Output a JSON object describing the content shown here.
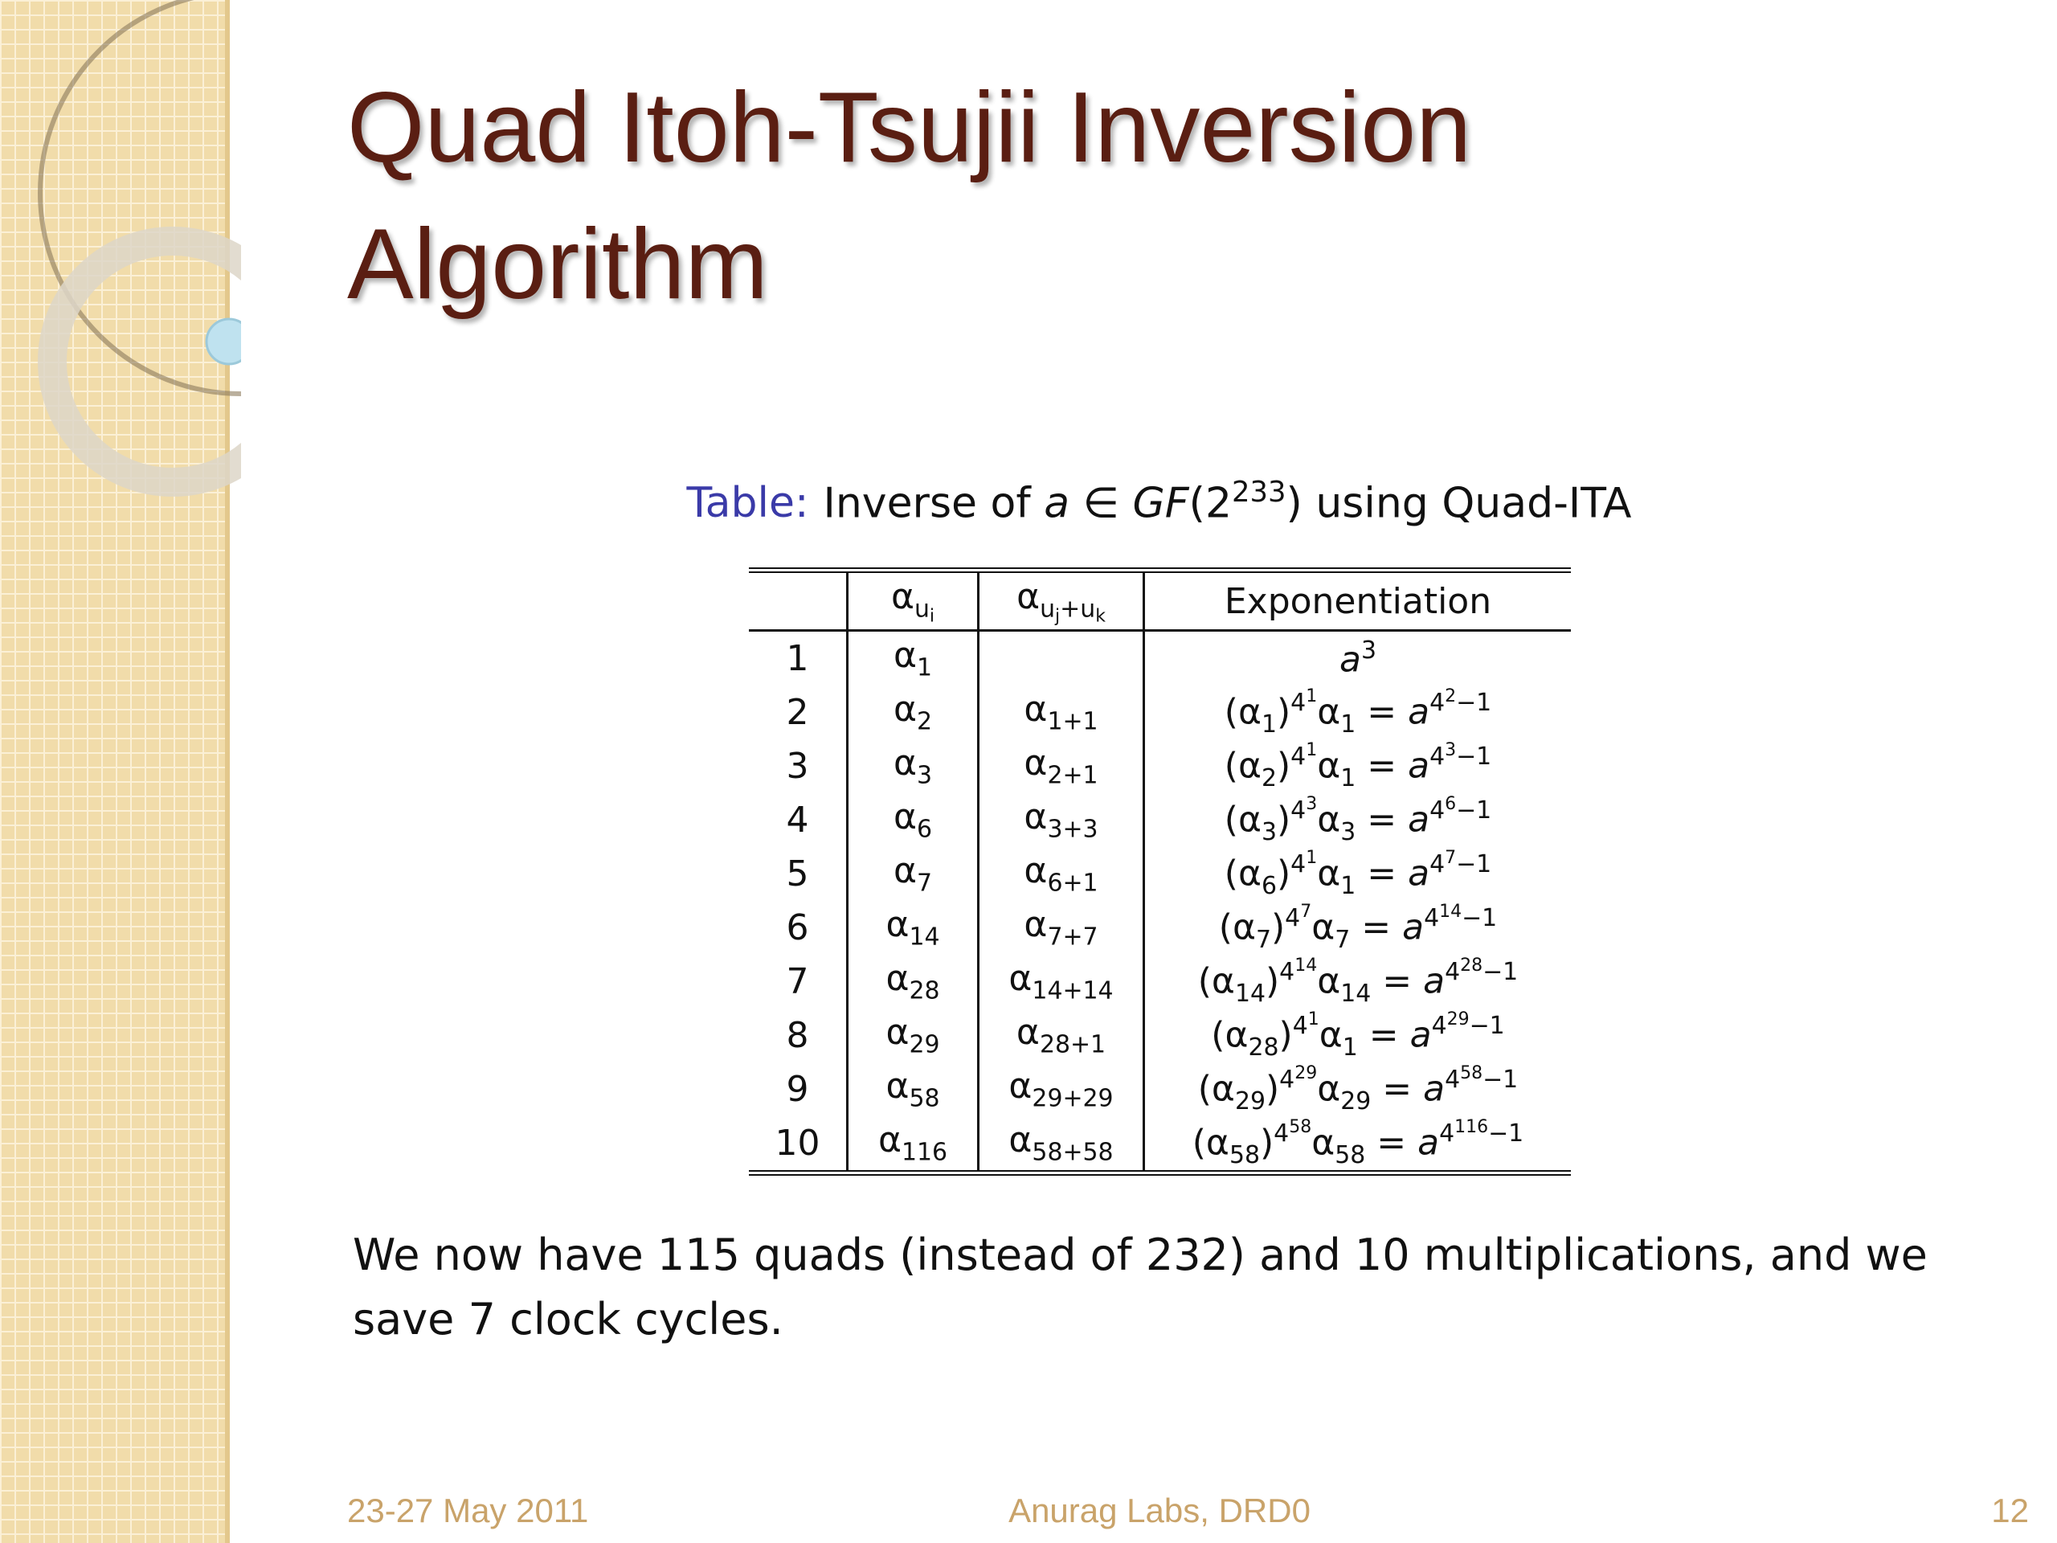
{
  "slide": {
    "title_lines": [
      "Quad Itoh-Tsujii Inversion",
      "Algorithm"
    ],
    "caption": {
      "label": "Table:",
      "text": [
        {
          "t": "Inverse of "
        },
        {
          "i": "a"
        },
        {
          "t": " ∈ "
        },
        {
          "i": "GF"
        },
        {
          "t": "(2"
        },
        {
          "sup": "233"
        },
        {
          "t": ") using Quad-ITA"
        }
      ]
    },
    "table": {
      "header": [
        [
          {
            "t": "α"
          },
          {
            "sub": "u"
          },
          {
            "subsub": "i"
          }
        ],
        [
          {
            "t": "α"
          },
          {
            "sub": "u"
          },
          {
            "subsub": "j"
          },
          {
            "sub": "+u"
          },
          {
            "subsub": "k"
          }
        ],
        [
          {
            "t": "Exponentiation"
          }
        ]
      ],
      "rows": [
        [
          "1",
          [
            {
              "t": "α"
            },
            {
              "sub": "1"
            }
          ],
          null,
          [
            {
              "i": "a"
            },
            {
              "sup": "3"
            }
          ]
        ],
        [
          "2",
          [
            {
              "t": "α"
            },
            {
              "sub": "2"
            }
          ],
          [
            {
              "t": "α"
            },
            {
              "sub": "1+1"
            }
          ],
          [
            {
              "t": "(α"
            },
            {
              "sub": "1"
            },
            {
              "t": ")"
            },
            {
              "sup": "4"
            },
            {
              "supsup": "1"
            },
            {
              "t": "α"
            },
            {
              "sub": "1"
            },
            {
              "t": " = "
            },
            {
              "i": "a"
            },
            {
              "sup": "4"
            },
            {
              "supsup": "2"
            },
            {
              "sup": "−1"
            }
          ]
        ],
        [
          "3",
          [
            {
              "t": "α"
            },
            {
              "sub": "3"
            }
          ],
          [
            {
              "t": "α"
            },
            {
              "sub": "2+1"
            }
          ],
          [
            {
              "t": "(α"
            },
            {
              "sub": "2"
            },
            {
              "t": ")"
            },
            {
              "sup": "4"
            },
            {
              "supsup": "1"
            },
            {
              "t": "α"
            },
            {
              "sub": "1"
            },
            {
              "t": " = "
            },
            {
              "i": "a"
            },
            {
              "sup": "4"
            },
            {
              "supsup": "3"
            },
            {
              "sup": "−1"
            }
          ]
        ],
        [
          "4",
          [
            {
              "t": "α"
            },
            {
              "sub": "6"
            }
          ],
          [
            {
              "t": "α"
            },
            {
              "sub": "3+3"
            }
          ],
          [
            {
              "t": "(α"
            },
            {
              "sub": "3"
            },
            {
              "t": ")"
            },
            {
              "sup": "4"
            },
            {
              "supsup": "3"
            },
            {
              "t": "α"
            },
            {
              "sub": "3"
            },
            {
              "t": " = "
            },
            {
              "i": "a"
            },
            {
              "sup": "4"
            },
            {
              "supsup": "6"
            },
            {
              "sup": "−1"
            }
          ]
        ],
        [
          "5",
          [
            {
              "t": "α"
            },
            {
              "sub": "7"
            }
          ],
          [
            {
              "t": "α"
            },
            {
              "sub": "6+1"
            }
          ],
          [
            {
              "t": "(α"
            },
            {
              "sub": "6"
            },
            {
              "t": ")"
            },
            {
              "sup": "4"
            },
            {
              "supsup": "1"
            },
            {
              "t": "α"
            },
            {
              "sub": "1"
            },
            {
              "t": " = "
            },
            {
              "i": "a"
            },
            {
              "sup": "4"
            },
            {
              "supsup": "7"
            },
            {
              "sup": "−1"
            }
          ]
        ],
        [
          "6",
          [
            {
              "t": "α"
            },
            {
              "sub": "14"
            }
          ],
          [
            {
              "t": "α"
            },
            {
              "sub": "7+7"
            }
          ],
          [
            {
              "t": "(α"
            },
            {
              "sub": "7"
            },
            {
              "t": ")"
            },
            {
              "sup": "4"
            },
            {
              "supsup": "7"
            },
            {
              "t": "α"
            },
            {
              "sub": "7"
            },
            {
              "t": " = "
            },
            {
              "i": "a"
            },
            {
              "sup": "4"
            },
            {
              "supsup": "14"
            },
            {
              "sup": "−1"
            }
          ]
        ],
        [
          "7",
          [
            {
              "t": "α"
            },
            {
              "sub": "28"
            }
          ],
          [
            {
              "t": "α"
            },
            {
              "sub": "14+14"
            }
          ],
          [
            {
              "t": "(α"
            },
            {
              "sub": "14"
            },
            {
              "t": ")"
            },
            {
              "sup": "4"
            },
            {
              "supsup": "14"
            },
            {
              "t": "α"
            },
            {
              "sub": "14"
            },
            {
              "t": " = "
            },
            {
              "i": "a"
            },
            {
              "sup": "4"
            },
            {
              "supsup": "28"
            },
            {
              "sup": "−1"
            }
          ]
        ],
        [
          "8",
          [
            {
              "t": "α"
            },
            {
              "sub": "29"
            }
          ],
          [
            {
              "t": "α"
            },
            {
              "sub": "28+1"
            }
          ],
          [
            {
              "t": "(α"
            },
            {
              "sub": "28"
            },
            {
              "t": ")"
            },
            {
              "sup": "4"
            },
            {
              "supsup": "1"
            },
            {
              "t": "α"
            },
            {
              "sub": "1"
            },
            {
              "t": " = "
            },
            {
              "i": "a"
            },
            {
              "sup": "4"
            },
            {
              "supsup": "29"
            },
            {
              "sup": "−1"
            }
          ]
        ],
        [
          "9",
          [
            {
              "t": "α"
            },
            {
              "sub": "58"
            }
          ],
          [
            {
              "t": "α"
            },
            {
              "sub": "29+29"
            }
          ],
          [
            {
              "t": "(α"
            },
            {
              "sub": "29"
            },
            {
              "t": ")"
            },
            {
              "sup": "4"
            },
            {
              "supsup": "29"
            },
            {
              "t": "α"
            },
            {
              "sub": "29"
            },
            {
              "t": " = "
            },
            {
              "i": "a"
            },
            {
              "sup": "4"
            },
            {
              "supsup": "58"
            },
            {
              "sup": "−1"
            }
          ]
        ],
        [
          "10",
          [
            {
              "t": "α"
            },
            {
              "sub": "116"
            }
          ],
          [
            {
              "t": "α"
            },
            {
              "sub": "58+58"
            }
          ],
          [
            {
              "t": "(α"
            },
            {
              "sub": "58"
            },
            {
              "t": ")"
            },
            {
              "sup": "4"
            },
            {
              "supsup": "58"
            },
            {
              "t": "α"
            },
            {
              "sub": "58"
            },
            {
              "t": " = "
            },
            {
              "i": "a"
            },
            {
              "sup": "4"
            },
            {
              "supsup": "116"
            },
            {
              "sup": "−1"
            }
          ]
        ]
      ]
    },
    "body_lines": [
      "We now have 115 quads (instead of 232) and 10 multiplications, and we",
      "save 7 clock cycles."
    ],
    "footer": {
      "date": "23-27 May 2011",
      "center": "Anurag Labs, DRD0",
      "page": "12"
    }
  }
}
